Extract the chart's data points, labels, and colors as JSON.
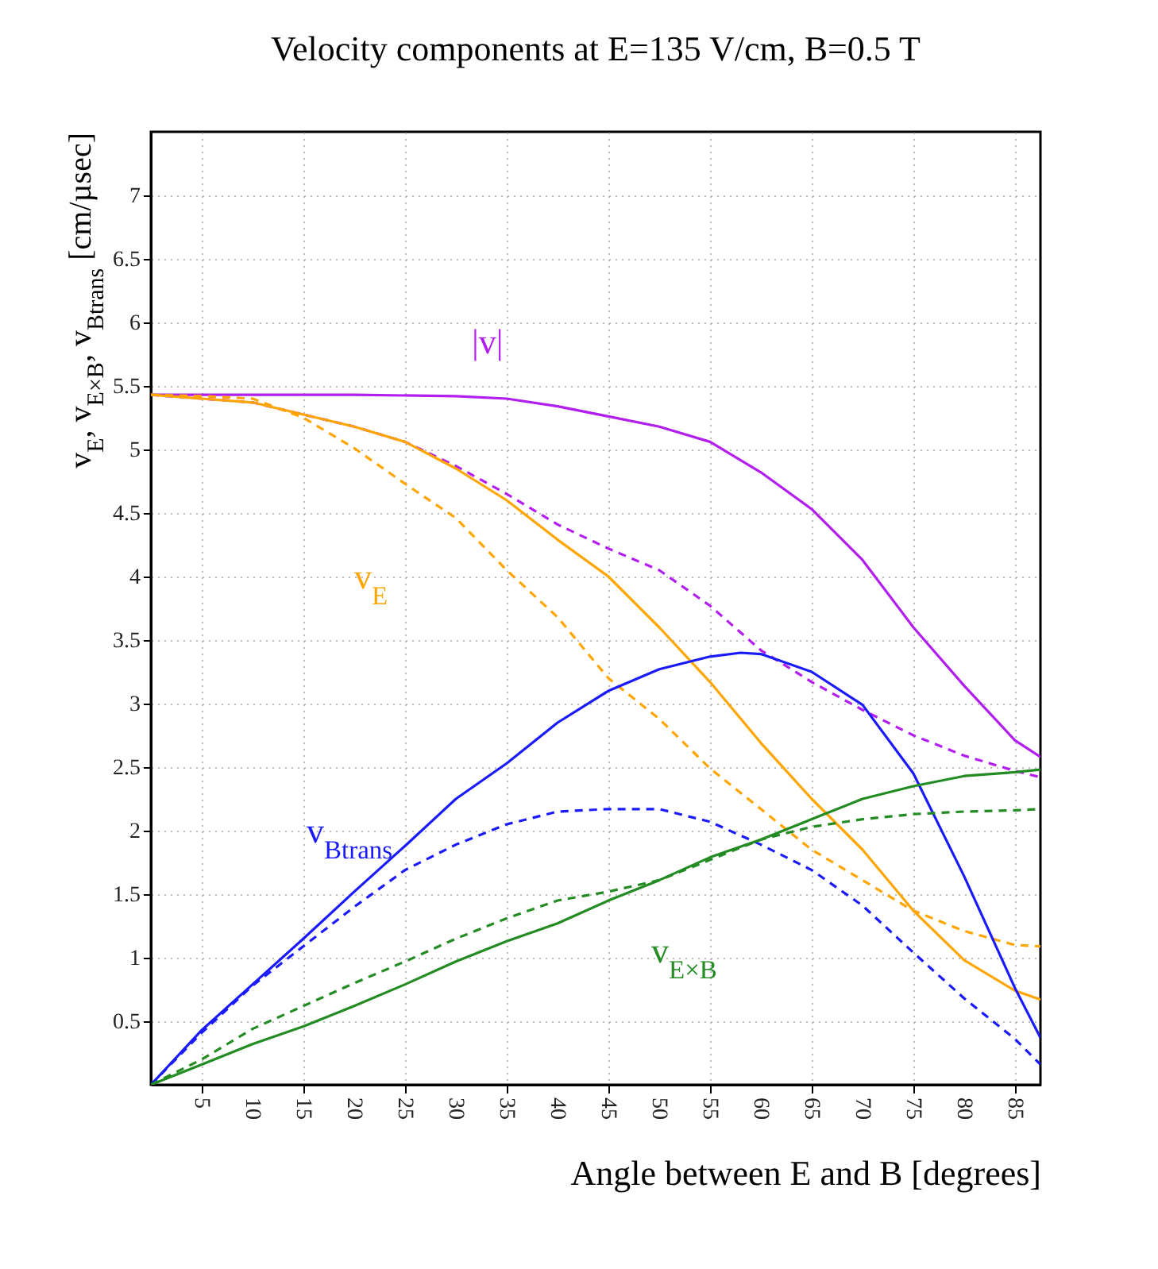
{
  "chart_data": {
    "type": "line",
    "title": "Velocity components at E=135 V/cm, B=0.5 T",
    "xlabel": "Angle between E and B [degrees]",
    "ylabel": "v$_{E}$, v$_{E×B}$, v$_{Btrans}$ [cm/µsec]",
    "xlim": [
      0,
      87.5
    ],
    "xticks": [
      5,
      10,
      15,
      20,
      25,
      30,
      35,
      40,
      45,
      50,
      55,
      60,
      65,
      70,
      75,
      80,
      85
    ],
    "ylim": [
      0,
      7.5
    ],
    "yticks": [
      0.5,
      1,
      1.5,
      2,
      2.5,
      3,
      3.5,
      4,
      4.5,
      5,
      5.5,
      6,
      6.5,
      7
    ],
    "grid": true,
    "series": [
      {
        "name": "|v|",
        "color": "#b31ef0",
        "line_style": "solid",
        "x": [
          0,
          10,
          20,
          30,
          35,
          40,
          45,
          50,
          55,
          60,
          65,
          70,
          75,
          80,
          85,
          87.5
        ],
        "values": [
          5.43,
          5.43,
          5.43,
          5.42,
          5.4,
          5.34,
          5.26,
          5.18,
          5.06,
          4.82,
          4.53,
          4.13,
          3.6,
          3.14,
          2.71,
          2.58
        ]
      },
      {
        "color": "#b31ef0",
        "line_style": "dashed",
        "x": [
          0,
          10,
          20,
          25,
          30,
          35,
          40,
          45,
          50,
          55,
          60,
          65,
          70,
          75,
          80,
          85,
          87.5
        ],
        "values": [
          5.43,
          5.37,
          5.18,
          5.06,
          4.87,
          4.65,
          4.41,
          4.22,
          4.05,
          3.77,
          3.42,
          3.17,
          2.95,
          2.75,
          2.59,
          2.47,
          2.42
        ]
      },
      {
        "name": "v$_{E}$",
        "color": "#ffa500",
        "line_style": "solid",
        "x": [
          0,
          10,
          20,
          25,
          30,
          35,
          40,
          45,
          50,
          55,
          60,
          65,
          70,
          75,
          80,
          85,
          87.5
        ],
        "values": [
          5.43,
          5.37,
          5.18,
          5.06,
          4.85,
          4.6,
          4.29,
          4.0,
          3.6,
          3.17,
          2.69,
          2.25,
          1.85,
          1.37,
          0.98,
          0.74,
          0.67
        ]
      },
      {
        "color": "#ffa500",
        "line_style": "dashed",
        "x": [
          0,
          5,
          10,
          15,
          20,
          25,
          30,
          35,
          40,
          45,
          50,
          55,
          60,
          65,
          70,
          75,
          80,
          85,
          87.5
        ],
        "values": [
          5.43,
          5.42,
          5.4,
          5.25,
          5.01,
          4.73,
          4.46,
          4.05,
          3.68,
          3.2,
          2.88,
          2.49,
          2.17,
          1.85,
          1.61,
          1.37,
          1.21,
          1.1,
          1.09
        ]
      },
      {
        "name": "v$_{Btrans}$",
        "color": "#1a1aff",
        "line_style": "solid",
        "x": [
          0,
          5,
          10,
          15,
          20,
          25,
          30,
          35,
          40,
          45,
          50,
          55,
          58,
          60,
          65,
          70,
          75,
          80,
          85,
          87.5
        ],
        "values": [
          0,
          0.43,
          0.79,
          1.15,
          1.52,
          1.88,
          2.25,
          2.53,
          2.85,
          3.1,
          3.27,
          3.37,
          3.4,
          3.39,
          3.25,
          2.99,
          2.45,
          1.64,
          0.76,
          0.37
        ]
      },
      {
        "color": "#1a1aff",
        "line_style": "dashed",
        "x": [
          0,
          5,
          10,
          15,
          20,
          25,
          30,
          35,
          40,
          45,
          50,
          55,
          60,
          65,
          70,
          75,
          80,
          85,
          87.5
        ],
        "values": [
          0,
          0.41,
          0.78,
          1.09,
          1.4,
          1.69,
          1.89,
          2.05,
          2.15,
          2.17,
          2.17,
          2.07,
          1.89,
          1.69,
          1.41,
          1.04,
          0.68,
          0.36,
          0.16
        ]
      },
      {
        "name": "v$_{E×B}$",
        "color": "#228b22",
        "line_style": "solid",
        "x": [
          0,
          5,
          10,
          15,
          20,
          25,
          30,
          35,
          40,
          45,
          50,
          55,
          60,
          65,
          70,
          75,
          80,
          85,
          87.5
        ],
        "values": [
          0,
          0.16,
          0.32,
          0.46,
          0.62,
          0.79,
          0.97,
          1.13,
          1.27,
          1.45,
          1.61,
          1.79,
          1.93,
          2.09,
          2.25,
          2.35,
          2.43,
          2.46,
          2.48
        ]
      },
      {
        "color": "#228b22",
        "line_style": "dashed",
        "x": [
          0,
          5,
          10,
          15,
          20,
          25,
          30,
          35,
          40,
          45,
          50,
          55,
          60,
          65,
          70,
          75,
          80,
          85,
          87.5
        ],
        "values": [
          0,
          0.2,
          0.44,
          0.62,
          0.8,
          0.97,
          1.15,
          1.31,
          1.45,
          1.52,
          1.61,
          1.77,
          1.93,
          2.03,
          2.09,
          2.13,
          2.15,
          2.16,
          2.17
        ]
      }
    ]
  }
}
